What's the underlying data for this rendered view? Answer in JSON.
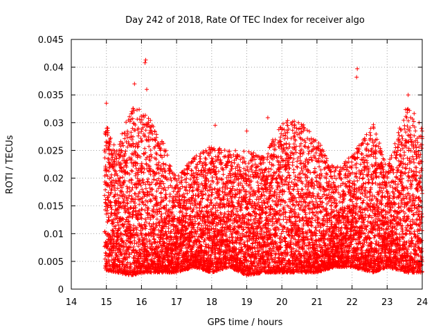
{
  "chart_data": {
    "type": "scatter",
    "title": "Day 242 of 2018, Rate Of TEC Index for receiver algo",
    "xlabel": "GPS time / hours",
    "ylabel": "ROTI / TECUs",
    "xlim": [
      14,
      24
    ],
    "ylim": [
      0,
      0.045
    ],
    "xticks": [
      "14",
      "15",
      "16",
      "17",
      "18",
      "19",
      "20",
      "21",
      "22",
      "23",
      "24"
    ],
    "yticks": [
      "0",
      "0.005",
      "0.01",
      "0.015",
      "0.02",
      "0.025",
      "0.03",
      "0.035",
      "0.04",
      "0.045"
    ],
    "grid": true,
    "marker": "+",
    "color": "#ff0000",
    "series": [
      {
        "name": "ROTI",
        "x_range": [
          14.95,
          24.0
        ],
        "x_step": 0.0028,
        "notable_points": [
          {
            "x": 16.12,
            "y": 0.0413
          },
          {
            "x": 16.1,
            "y": 0.0408
          },
          {
            "x": 22.15,
            "y": 0.0397
          },
          {
            "x": 22.13,
            "y": 0.0382
          },
          {
            "x": 15.8,
            "y": 0.037
          },
          {
            "x": 23.6,
            "y": 0.035
          },
          {
            "x": 15.0,
            "y": 0.0335
          },
          {
            "x": 16.15,
            "y": 0.036
          },
          {
            "x": 18.1,
            "y": 0.0295
          },
          {
            "x": 19.6,
            "y": 0.0309
          },
          {
            "x": 19.0,
            "y": 0.0285
          }
        ],
        "envelope": [
          {
            "x": 14.95,
            "lo": 0.0035,
            "hi": 0.031
          },
          {
            "x": 15.3,
            "lo": 0.003,
            "hi": 0.025
          },
          {
            "x": 15.7,
            "lo": 0.0025,
            "hi": 0.033
          },
          {
            "x": 16.1,
            "lo": 0.003,
            "hi": 0.032
          },
          {
            "x": 16.6,
            "lo": 0.003,
            "hi": 0.027
          },
          {
            "x": 17.0,
            "lo": 0.003,
            "hi": 0.02
          },
          {
            "x": 17.5,
            "lo": 0.004,
            "hi": 0.024
          },
          {
            "x": 18.0,
            "lo": 0.003,
            "hi": 0.026
          },
          {
            "x": 18.5,
            "lo": 0.004,
            "hi": 0.025
          },
          {
            "x": 19.0,
            "lo": 0.0025,
            "hi": 0.025
          },
          {
            "x": 19.5,
            "lo": 0.003,
            "hi": 0.024
          },
          {
            "x": 20.0,
            "lo": 0.003,
            "hi": 0.03
          },
          {
            "x": 20.4,
            "lo": 0.003,
            "hi": 0.031
          },
          {
            "x": 21.0,
            "lo": 0.003,
            "hi": 0.027
          },
          {
            "x": 21.5,
            "lo": 0.004,
            "hi": 0.022
          },
          {
            "x": 22.0,
            "lo": 0.004,
            "hi": 0.024
          },
          {
            "x": 22.6,
            "lo": 0.003,
            "hi": 0.03
          },
          {
            "x": 23.0,
            "lo": 0.004,
            "hi": 0.022
          },
          {
            "x": 23.6,
            "lo": 0.003,
            "hi": 0.034
          },
          {
            "x": 24.0,
            "lo": 0.003,
            "hi": 0.029
          }
        ]
      }
    ]
  }
}
